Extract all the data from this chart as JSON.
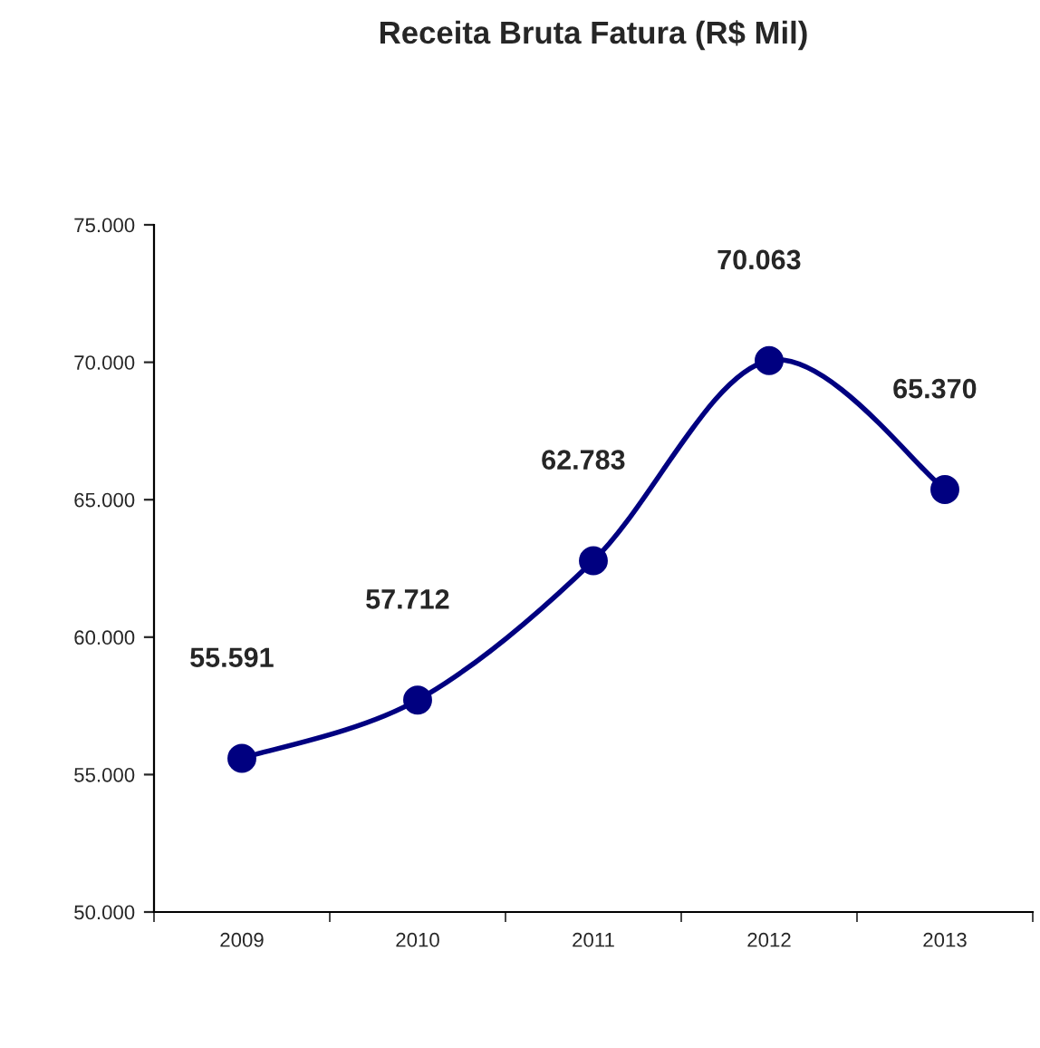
{
  "chart_data": {
    "type": "line",
    "title": "Receita Bruta Fatura (R$ Mil)",
    "categories": [
      "2009",
      "2010",
      "2011",
      "2012",
      "2013"
    ],
    "series": [
      {
        "color": "#000080",
        "values": [
          55591,
          57712,
          62783,
          70063,
          65370
        ],
        "value_labels": [
          "55.591",
          "57.712",
          "62.783",
          "70.063",
          "65.370"
        ]
      }
    ],
    "ylim": [
      50000,
      75000
    ],
    "yticks": [
      {
        "value": 50000,
        "label": "50.000"
      },
      {
        "value": 55000,
        "label": "55.000"
      },
      {
        "value": 60000,
        "label": "60.000"
      },
      {
        "value": 65000,
        "label": "65.000"
      },
      {
        "value": 70000,
        "label": "70.000"
      },
      {
        "value": 75000,
        "label": "75.000"
      }
    ],
    "marker": "circle",
    "line_style": "solid",
    "grid": false,
    "legend": false
  }
}
